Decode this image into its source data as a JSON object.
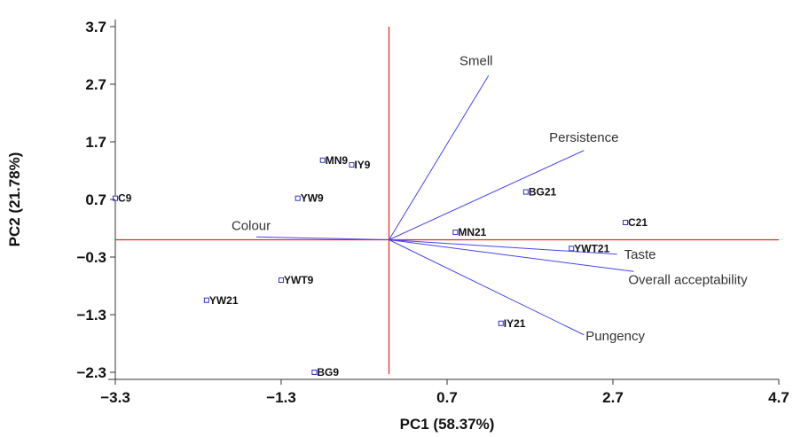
{
  "chart_data": {
    "type": "scatter",
    "subtype": "pca-biplot",
    "title": "",
    "xlabel": "PC1 (58.37%)",
    "ylabel": "PC2 (21.78%)",
    "xlim": [
      -3.3,
      4.7
    ],
    "ylim": [
      -2.3,
      3.7
    ],
    "xticks": [
      "-3.3",
      "-1.3",
      "0.7",
      "2.7",
      "4.7"
    ],
    "yticks": [
      "3.7",
      "2.7",
      "1.7",
      "0.7",
      "-0.3",
      "-1.3",
      "-2.3"
    ],
    "grid": false,
    "colors": {
      "points": "#3333cc",
      "vectors": "#4444ee",
      "zero_lines": "#e8242a",
      "axes": "#333333"
    },
    "scores": [
      {
        "label": "C9",
        "x": -3.3,
        "y": 0.72
      },
      {
        "label": "MN9",
        "x": -0.8,
        "y": 1.38
      },
      {
        "label": "IY9",
        "x": -0.45,
        "y": 1.3
      },
      {
        "label": "YW9",
        "x": -1.1,
        "y": 0.72
      },
      {
        "label": "BG21",
        "x": 1.65,
        "y": 0.83
      },
      {
        "label": "C21",
        "x": 2.85,
        "y": 0.3
      },
      {
        "label": "MN21",
        "x": 0.8,
        "y": 0.13
      },
      {
        "label": "YWT21",
        "x": 2.2,
        "y": -0.15
      },
      {
        "label": "YWT9",
        "x": -1.3,
        "y": -0.7
      },
      {
        "label": "YW21",
        "x": -2.2,
        "y": -1.05
      },
      {
        "label": "IY21",
        "x": 1.35,
        "y": -1.45
      },
      {
        "label": "BG9",
        "x": -0.9,
        "y": -2.3
      }
    ],
    "loadings": [
      {
        "label": "Smell",
        "x": 1.2,
        "y": 2.85
      },
      {
        "label": "Persistence",
        "x": 2.35,
        "y": 1.55
      },
      {
        "label": "Colour",
        "x": -1.6,
        "y": 0.05
      },
      {
        "label": "Taste",
        "x": 2.75,
        "y": -0.25
      },
      {
        "label": "Overall acceptability",
        "x": 2.95,
        "y": -0.55
      },
      {
        "label": "Pungency",
        "x": 2.35,
        "y": -1.65
      }
    ]
  }
}
